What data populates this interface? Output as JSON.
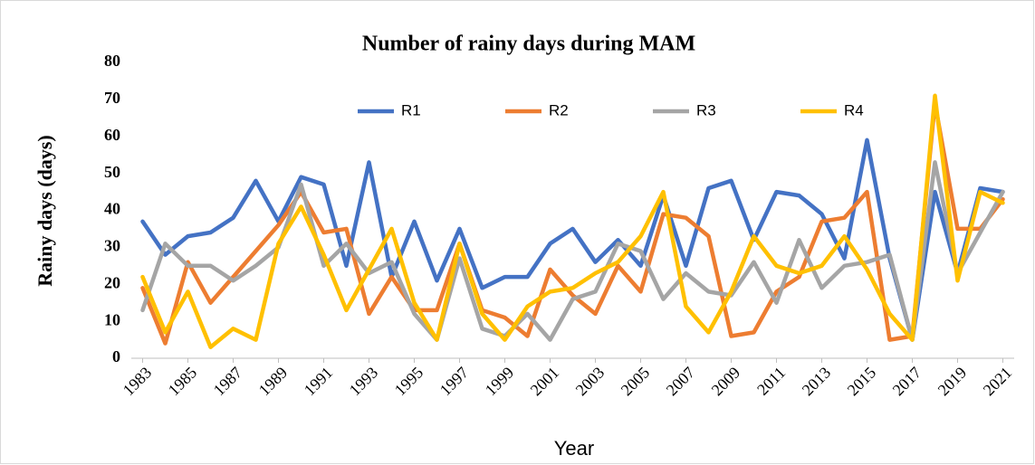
{
  "chart_data": {
    "type": "line",
    "title": "Number of rainy days during MAM",
    "x_label": "Year",
    "y_label": "Rainy days (days)",
    "x": [
      1983,
      1984,
      1985,
      1986,
      1987,
      1988,
      1989,
      1990,
      1991,
      1992,
      1993,
      1994,
      1995,
      1996,
      1997,
      1998,
      1999,
      2000,
      2001,
      2002,
      2003,
      2004,
      2005,
      2006,
      2007,
      2008,
      2009,
      2010,
      2011,
      2012,
      2013,
      2014,
      2015,
      2016,
      2017,
      2018,
      2019,
      2020,
      2021
    ],
    "xlim": [
      1982.5,
      2021.5
    ],
    "xticks": [
      1983,
      1985,
      1987,
      1989,
      1991,
      1993,
      1995,
      1997,
      1999,
      2001,
      2003,
      2005,
      2007,
      2009,
      2011,
      2013,
      2015,
      2017,
      2019,
      2021
    ],
    "ylim": [
      0,
      80
    ],
    "yticks": [
      0,
      10,
      20,
      30,
      40,
      50,
      60,
      70,
      80
    ],
    "grid": false,
    "legend": "top",
    "series": [
      {
        "name": "R1",
        "color": "#4472c4",
        "values": [
          37,
          28,
          33,
          34,
          38,
          48,
          37,
          49,
          47,
          25,
          53,
          22,
          37,
          21,
          35,
          19,
          22,
          22,
          31,
          35,
          26,
          32,
          25,
          44,
          25,
          46,
          48,
          32,
          45,
          44,
          39,
          27,
          59,
          27,
          5,
          45,
          23,
          46,
          45
        ]
      },
      {
        "name": "R2",
        "color": "#ed7d31",
        "values": [
          19,
          4,
          26,
          15,
          22,
          29,
          36,
          45,
          34,
          35,
          12,
          22,
          13,
          13,
          31,
          13,
          11,
          6,
          24,
          17,
          12,
          25,
          18,
          39,
          38,
          33,
          6,
          7,
          18,
          22,
          37,
          38,
          45,
          5,
          6,
          69,
          35,
          35,
          43
        ]
      },
      {
        "name": "R3",
        "color": "#a5a5a5",
        "values": [
          13,
          31,
          25,
          25,
          21,
          25,
          30,
          47,
          25,
          31,
          23,
          26,
          12,
          5,
          27,
          8,
          6,
          12,
          5,
          16,
          18,
          31,
          29,
          16,
          23,
          18,
          17,
          26,
          15,
          32,
          19,
          25,
          26,
          28,
          5,
          53,
          23,
          34,
          45
        ]
      },
      {
        "name": "R4",
        "color": "#ffc000",
        "values": [
          22,
          7,
          18,
          3,
          8,
          5,
          31,
          41,
          28,
          13,
          24,
          35,
          15,
          5,
          31,
          12,
          5,
          14,
          18,
          19,
          23,
          26,
          33,
          45,
          14,
          7,
          18,
          33,
          25,
          23,
          25,
          33,
          24,
          12,
          5,
          71,
          21,
          45,
          42
        ]
      }
    ]
  }
}
